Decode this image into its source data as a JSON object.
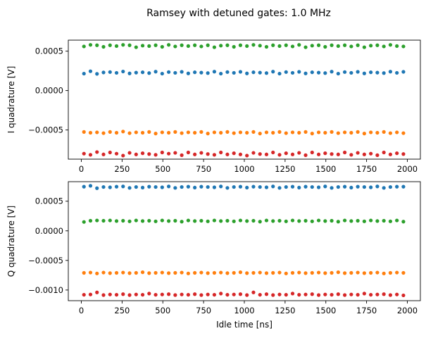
{
  "figure": {
    "title": "Ramsey with detuned gates: 1.0 MHz"
  },
  "chart_data": [
    {
      "type": "scatter",
      "title": "Ramsey with detuned gates: 1.0 MHz",
      "xlabel": "",
      "ylabel": "I quadrature [V]",
      "xlim": [
        -80,
        2080
      ],
      "ylim": [
        -0.00087,
        0.00064
      ],
      "xticks": [
        0,
        250,
        500,
        750,
        1000,
        1250,
        1500,
        1750,
        2000
      ],
      "xtick_labels": [
        "0",
        "250",
        "500",
        "750",
        "1000",
        "1250",
        "1500",
        "1750",
        "2000"
      ],
      "yticks": [
        0.0005,
        0.0,
        -0.0005
      ],
      "ytick_labels": [
        "0.0005",
        "0.0000",
        "−0.0005"
      ],
      "grid": false,
      "x": [
        16,
        56,
        96,
        136,
        176,
        216,
        256,
        296,
        336,
        376,
        416,
        456,
        496,
        536,
        576,
        616,
        656,
        696,
        736,
        776,
        816,
        856,
        896,
        936,
        976,
        1016,
        1056,
        1096,
        1136,
        1176,
        1216,
        1256,
        1296,
        1336,
        1376,
        1416,
        1456,
        1496,
        1536,
        1576,
        1616,
        1656,
        1696,
        1736,
        1776,
        1816,
        1856,
        1896,
        1936,
        1976
      ],
      "series": [
        {
          "color": "#1f77b4",
          "values": [
            0.000215,
            0.000245,
            0.000212,
            0.00023,
            0.000235,
            0.000225,
            0.000242,
            0.000218,
            0.000228,
            0.000232,
            0.000222,
            0.00024,
            0.000215,
            0.000235,
            0.000225,
            0.000238,
            0.000218,
            0.000232,
            0.000228,
            0.000222,
            0.00024,
            0.000215,
            0.000235,
            0.000225,
            0.000238,
            0.000218,
            0.000232,
            0.000228,
            0.000222,
            0.00024,
            0.000215,
            0.000235,
            0.000225,
            0.000238,
            0.000218,
            0.000232,
            0.000228,
            0.000222,
            0.00024,
            0.000215,
            0.000235,
            0.000225,
            0.000238,
            0.000218,
            0.000232,
            0.000228,
            0.000222,
            0.00024,
            0.000225,
            0.000238
          ]
        },
        {
          "color": "#ff7f0e",
          "values": [
            -0.000525,
            -0.000535,
            -0.00053,
            -0.00054,
            -0.000525,
            -0.000535,
            -0.00052,
            -0.00054,
            -0.00053,
            -0.000535,
            -0.000525,
            -0.000545,
            -0.00053,
            -0.000535,
            -0.000525,
            -0.00054,
            -0.00053,
            -0.000535,
            -0.000525,
            -0.000545,
            -0.00053,
            -0.000535,
            -0.000525,
            -0.00054,
            -0.00053,
            -0.000535,
            -0.000525,
            -0.000545,
            -0.00053,
            -0.000535,
            -0.000525,
            -0.00054,
            -0.00053,
            -0.000535,
            -0.000525,
            -0.000545,
            -0.00053,
            -0.000535,
            -0.000525,
            -0.00054,
            -0.00053,
            -0.000535,
            -0.000525,
            -0.000545,
            -0.00053,
            -0.000535,
            -0.000525,
            -0.00054,
            -0.00053,
            -0.00054
          ]
        },
        {
          "color": "#2ca02c",
          "values": [
            0.00056,
            0.00058,
            0.000575,
            0.000555,
            0.000575,
            0.000565,
            0.00058,
            0.000575,
            0.00055,
            0.00057,
            0.000565,
            0.000575,
            0.000555,
            0.00058,
            0.00056,
            0.000575,
            0.000565,
            0.000575,
            0.00056,
            0.000575,
            0.00055,
            0.00057,
            0.000575,
            0.000555,
            0.000575,
            0.000565,
            0.00058,
            0.00057,
            0.000555,
            0.000575,
            0.000565,
            0.000575,
            0.00056,
            0.00058,
            0.00055,
            0.00057,
            0.000575,
            0.000555,
            0.000575,
            0.000565,
            0.000575,
            0.00056,
            0.000575,
            0.00055,
            0.00057,
            0.000575,
            0.00056,
            0.00058,
            0.000565,
            0.00056
          ]
        },
        {
          "color": "#d62728",
          "values": [
            -0.0008,
            -0.000815,
            -0.00078,
            -0.00081,
            -0.000785,
            -0.0008,
            -0.000825,
            -0.00079,
            -0.00081,
            -0.000795,
            -0.000805,
            -0.000815,
            -0.000785,
            -0.0008,
            -0.00079,
            -0.00082,
            -0.000785,
            -0.00081,
            -0.00079,
            -0.000805,
            -0.000815,
            -0.000785,
            -0.00081,
            -0.000795,
            -0.00081,
            -0.000825,
            -0.00079,
            -0.000805,
            -0.00081,
            -0.000785,
            -0.000815,
            -0.000795,
            -0.00081,
            -0.00079,
            -0.00082,
            -0.000785,
            -0.00081,
            -0.000795,
            -0.000805,
            -0.00081,
            -0.000785,
            -0.000815,
            -0.00079,
            -0.00081,
            -0.0008,
            -0.00082,
            -0.000785,
            -0.00081,
            -0.000795,
            -0.000805
          ]
        }
      ]
    },
    {
      "type": "scatter",
      "title": "",
      "xlabel": "Idle time [ns]",
      "ylabel": "Q quadrature [V]",
      "xlim": [
        -80,
        2080
      ],
      "ylim": [
        -0.00118,
        0.00083
      ],
      "xticks": [
        0,
        250,
        500,
        750,
        1000,
        1250,
        1500,
        1750,
        2000
      ],
      "xtick_labels": [
        "0",
        "250",
        "500",
        "750",
        "1000",
        "1250",
        "1500",
        "1750",
        "2000"
      ],
      "yticks": [
        0.0005,
        0.0,
        -0.0005,
        -0.001
      ],
      "ytick_labels": [
        "0.0005",
        "0.0000",
        "−0.0005",
        "−0.0010"
      ],
      "grid": false,
      "x": [
        16,
        56,
        96,
        136,
        176,
        216,
        256,
        296,
        336,
        376,
        416,
        456,
        496,
        536,
        576,
        616,
        656,
        696,
        736,
        776,
        816,
        856,
        896,
        936,
        976,
        1016,
        1056,
        1096,
        1136,
        1176,
        1216,
        1256,
        1296,
        1336,
        1376,
        1416,
        1456,
        1496,
        1536,
        1576,
        1616,
        1656,
        1696,
        1736,
        1776,
        1816,
        1856,
        1896,
        1936,
        1976
      ],
      "series": [
        {
          "color": "#1f77b4",
          "values": [
            0.000745,
            0.00076,
            0.00072,
            0.00074,
            0.000735,
            0.000745,
            0.00075,
            0.000725,
            0.00074,
            0.00073,
            0.000745,
            0.00074,
            0.000735,
            0.00075,
            0.000725,
            0.00074,
            0.000745,
            0.00073,
            0.000745,
            0.00074,
            0.000735,
            0.00075,
            0.000725,
            0.00074,
            0.000745,
            0.00073,
            0.000745,
            0.00074,
            0.000735,
            0.00075,
            0.000725,
            0.00074,
            0.000745,
            0.00073,
            0.000745,
            0.00074,
            0.000735,
            0.00075,
            0.000725,
            0.00074,
            0.000745,
            0.00073,
            0.000745,
            0.00074,
            0.000735,
            0.00075,
            0.000725,
            0.00074,
            0.000745,
            0.000745
          ]
        },
        {
          "color": "#ff7f0e",
          "values": [
            -0.00071,
            -0.000705,
            -0.00072,
            -0.000705,
            -0.000715,
            -0.00071,
            -0.000705,
            -0.000715,
            -0.00071,
            -0.0007,
            -0.000715,
            -0.00071,
            -0.000705,
            -0.000715,
            -0.00071,
            -0.000705,
            -0.00072,
            -0.00071,
            -0.000705,
            -0.000715,
            -0.00071,
            -0.000705,
            -0.000715,
            -0.00071,
            -0.0007,
            -0.000715,
            -0.00071,
            -0.000705,
            -0.000715,
            -0.00071,
            -0.000705,
            -0.00072,
            -0.00071,
            -0.000705,
            -0.000715,
            -0.00071,
            -0.000705,
            -0.000715,
            -0.00071,
            -0.0007,
            -0.000715,
            -0.00071,
            -0.000705,
            -0.000715,
            -0.00071,
            -0.000705,
            -0.00072,
            -0.00071,
            -0.000705,
            -0.00071
          ]
        },
        {
          "color": "#2ca02c",
          "values": [
            0.00015,
            0.00017,
            0.000175,
            0.00017,
            0.000175,
            0.000165,
            0.00017,
            0.00016,
            0.000175,
            0.000165,
            0.00017,
            0.00016,
            0.000175,
            0.000165,
            0.00017,
            0.000155,
            0.000175,
            0.000165,
            0.00017,
            0.00016,
            0.000175,
            0.000165,
            0.00017,
            0.00016,
            0.000175,
            0.000165,
            0.00017,
            0.000155,
            0.000175,
            0.000165,
            0.00017,
            0.00016,
            0.000175,
            0.000165,
            0.00017,
            0.00016,
            0.000175,
            0.000165,
            0.00017,
            0.000155,
            0.000175,
            0.000165,
            0.00017,
            0.00016,
            0.000175,
            0.000165,
            0.00017,
            0.00016,
            0.000175,
            0.000155
          ]
        },
        {
          "color": "#d62728",
          "values": [
            -0.00108,
            -0.001075,
            -0.00104,
            -0.001085,
            -0.001075,
            -0.00108,
            -0.00107,
            -0.001085,
            -0.001075,
            -0.00108,
            -0.00106,
            -0.00108,
            -0.001075,
            -0.00107,
            -0.001085,
            -0.001075,
            -0.00108,
            -0.00107,
            -0.001085,
            -0.001075,
            -0.00108,
            -0.00106,
            -0.00108,
            -0.001075,
            -0.00107,
            -0.001085,
            -0.00104,
            -0.00108,
            -0.00107,
            -0.001085,
            -0.001075,
            -0.00108,
            -0.00106,
            -0.00108,
            -0.001075,
            -0.00107,
            -0.001085,
            -0.001075,
            -0.00108,
            -0.00107,
            -0.001085,
            -0.001075,
            -0.00108,
            -0.00106,
            -0.00108,
            -0.001075,
            -0.00107,
            -0.001085,
            -0.001075,
            -0.00109
          ]
        }
      ]
    }
  ]
}
